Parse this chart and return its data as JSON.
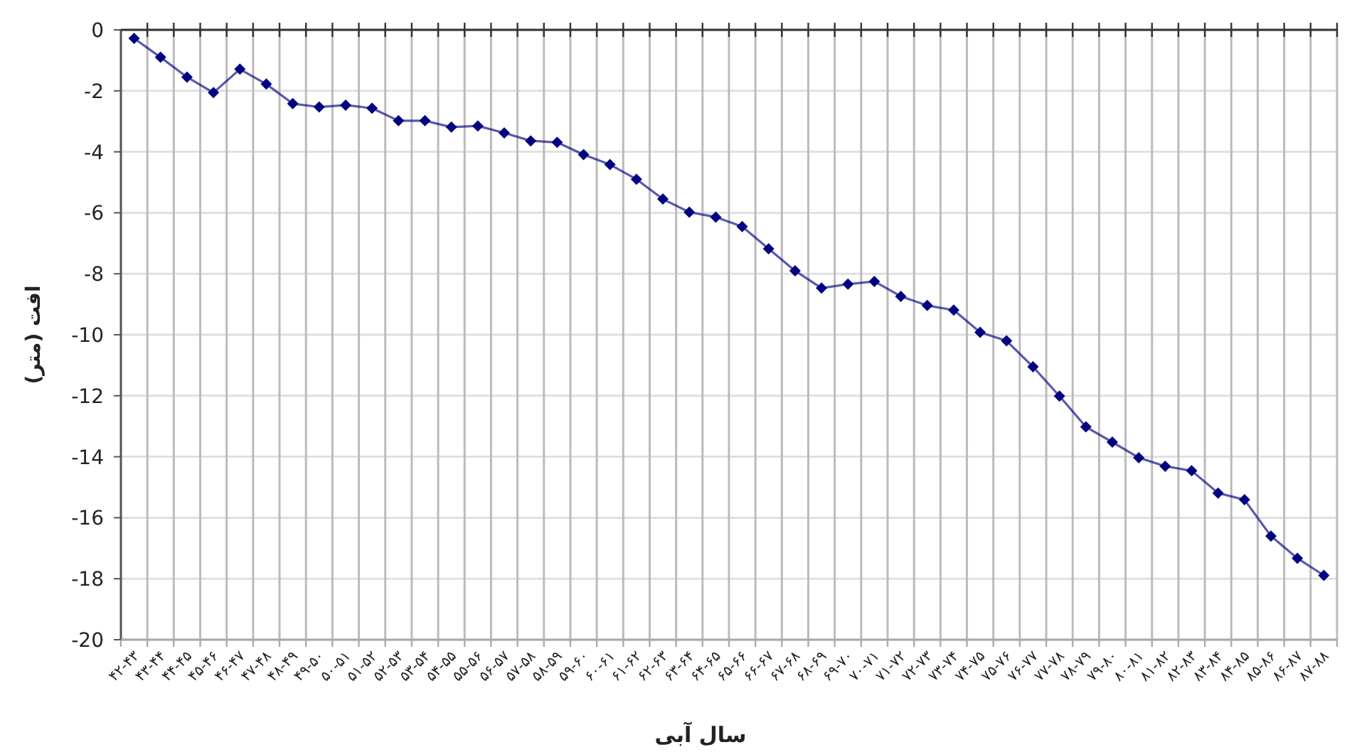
{
  "chart_data": {
    "type": "line",
    "xlabel": "سال آبی",
    "ylabel": "افت (متر)",
    "categories": [
      "۴۲-۴۳",
      "۴۳-۴۴",
      "۴۴-۴۵",
      "۴۵-۴۶",
      "۴۶-۴۷",
      "۴۷-۴۸",
      "۴۸-۴۹",
      "۴۹-۵۰",
      "۵۰-۵۱",
      "۵۱-۵۲",
      "۵۲-۵۳",
      "۵۳-۵۴",
      "۵۴-۵۵",
      "۵۵-۵۶",
      "۵۶-۵۷",
      "۵۷-۵۸",
      "۵۸-۵۹",
      "۵۹-۶۰",
      "۶۰-۶۱",
      "۶۱-۶۲",
      "۶۲-۶۳",
      "۶۳-۶۴",
      "۶۴-۶۵",
      "۶۵-۶۶",
      "۶۶-۶۷",
      "۶۷-۶۸",
      "۶۸-۶۹",
      "۶۹-۷۰",
      "۷۰-۷۱",
      "۷۱-۷۲",
      "۷۲-۷۳",
      "۷۳-۷۴",
      "۷۴-۷۵",
      "۷۵-۷۶",
      "۷۶-۷۷",
      "۷۷-۷۸",
      "۷۸-۷۹",
      "۷۹-۸۰",
      "۸۰-۸۱",
      "۸۱-۸۲",
      "۸۲-۸۳",
      "۸۳-۸۴",
      "۸۴-۸۵",
      "۸۵-۸۶",
      "۸۶-۸۷",
      "۸۷-۸۸"
    ],
    "series": [
      {
        "color": "#000080",
        "values": [
          -0.28,
          -0.9,
          -1.55,
          -2.06,
          -1.29,
          -1.78,
          -2.42,
          -2.53,
          -2.47,
          -2.57,
          -2.98,
          -2.98,
          -3.19,
          -3.15,
          -3.38,
          -3.64,
          -3.69,
          -4.09,
          -4.42,
          -4.9,
          -5.55,
          -5.98,
          -6.14,
          -6.45,
          -7.18,
          -7.9,
          -8.47,
          -8.34,
          -8.25,
          -8.74,
          -9.04,
          -9.19,
          -9.92,
          -10.2,
          -11.05,
          -12.01,
          -13.02,
          -13.52,
          -14.03,
          -14.31,
          -14.46,
          -15.19,
          -15.41,
          -16.6,
          -17.33,
          -17.89
        ]
      }
    ],
    "ylim": [
      -20,
      0
    ],
    "yticks": [
      0,
      -2,
      -4,
      -6,
      -8,
      -10,
      -12,
      -14,
      -16,
      -18,
      -20
    ],
    "grid": true,
    "marker": "diamond",
    "line_style": "solid"
  }
}
